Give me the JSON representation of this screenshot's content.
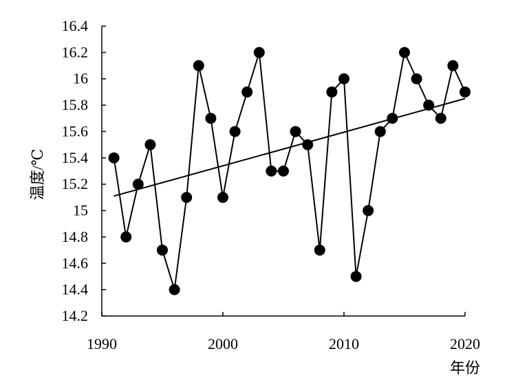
{
  "chart_data": {
    "type": "line",
    "title": "",
    "xlabel": "年份",
    "ylabel": "温度/℃",
    "xlim": [
      1990,
      2020
    ],
    "ylim": [
      14.2,
      16.4
    ],
    "x_ticks": [
      1990,
      2000,
      2010,
      2020
    ],
    "x_tick_labels": [
      "1990",
      "2000",
      "2010",
      "2020"
    ],
    "y_ticks": [
      14.2,
      14.4,
      14.6,
      14.8,
      15.0,
      15.2,
      15.4,
      15.6,
      15.8,
      16.0,
      16.2,
      16.4
    ],
    "y_tick_labels": [
      "14.2",
      "14.4",
      "14.6",
      "14.8",
      "15",
      "15.2",
      "15.4",
      "15.6",
      "15.8",
      "16",
      "16.2",
      "16.4"
    ],
    "grid": false,
    "legend": "none",
    "series": [
      {
        "x": [
          1991,
          1992,
          1993,
          1994,
          1995,
          1996,
          1997,
          1998,
          1999,
          2000,
          2001,
          2002,
          2003,
          2004,
          2005,
          2006,
          2007,
          2008,
          2009,
          2010,
          2011,
          2012,
          2013,
          2014,
          2015,
          2016,
          2017,
          2018,
          2019,
          2020
        ],
        "values": [
          15.4,
          14.8,
          15.2,
          15.5,
          14.7,
          14.4,
          15.1,
          16.1,
          15.7,
          15.1,
          15.6,
          15.9,
          16.2,
          15.3,
          15.3,
          15.6,
          15.5,
          14.7,
          15.9,
          16.0,
          14.5,
          15.0,
          15.6,
          15.7,
          16.2,
          16.0,
          15.8,
          15.7,
          16.1,
          15.9
        ],
        "color": "#000000",
        "marker": "circle"
      }
    ],
    "trendline": {
      "x": [
        1991,
        2020
      ],
      "values": [
        15.11,
        15.85
      ],
      "color": "#000000"
    }
  }
}
